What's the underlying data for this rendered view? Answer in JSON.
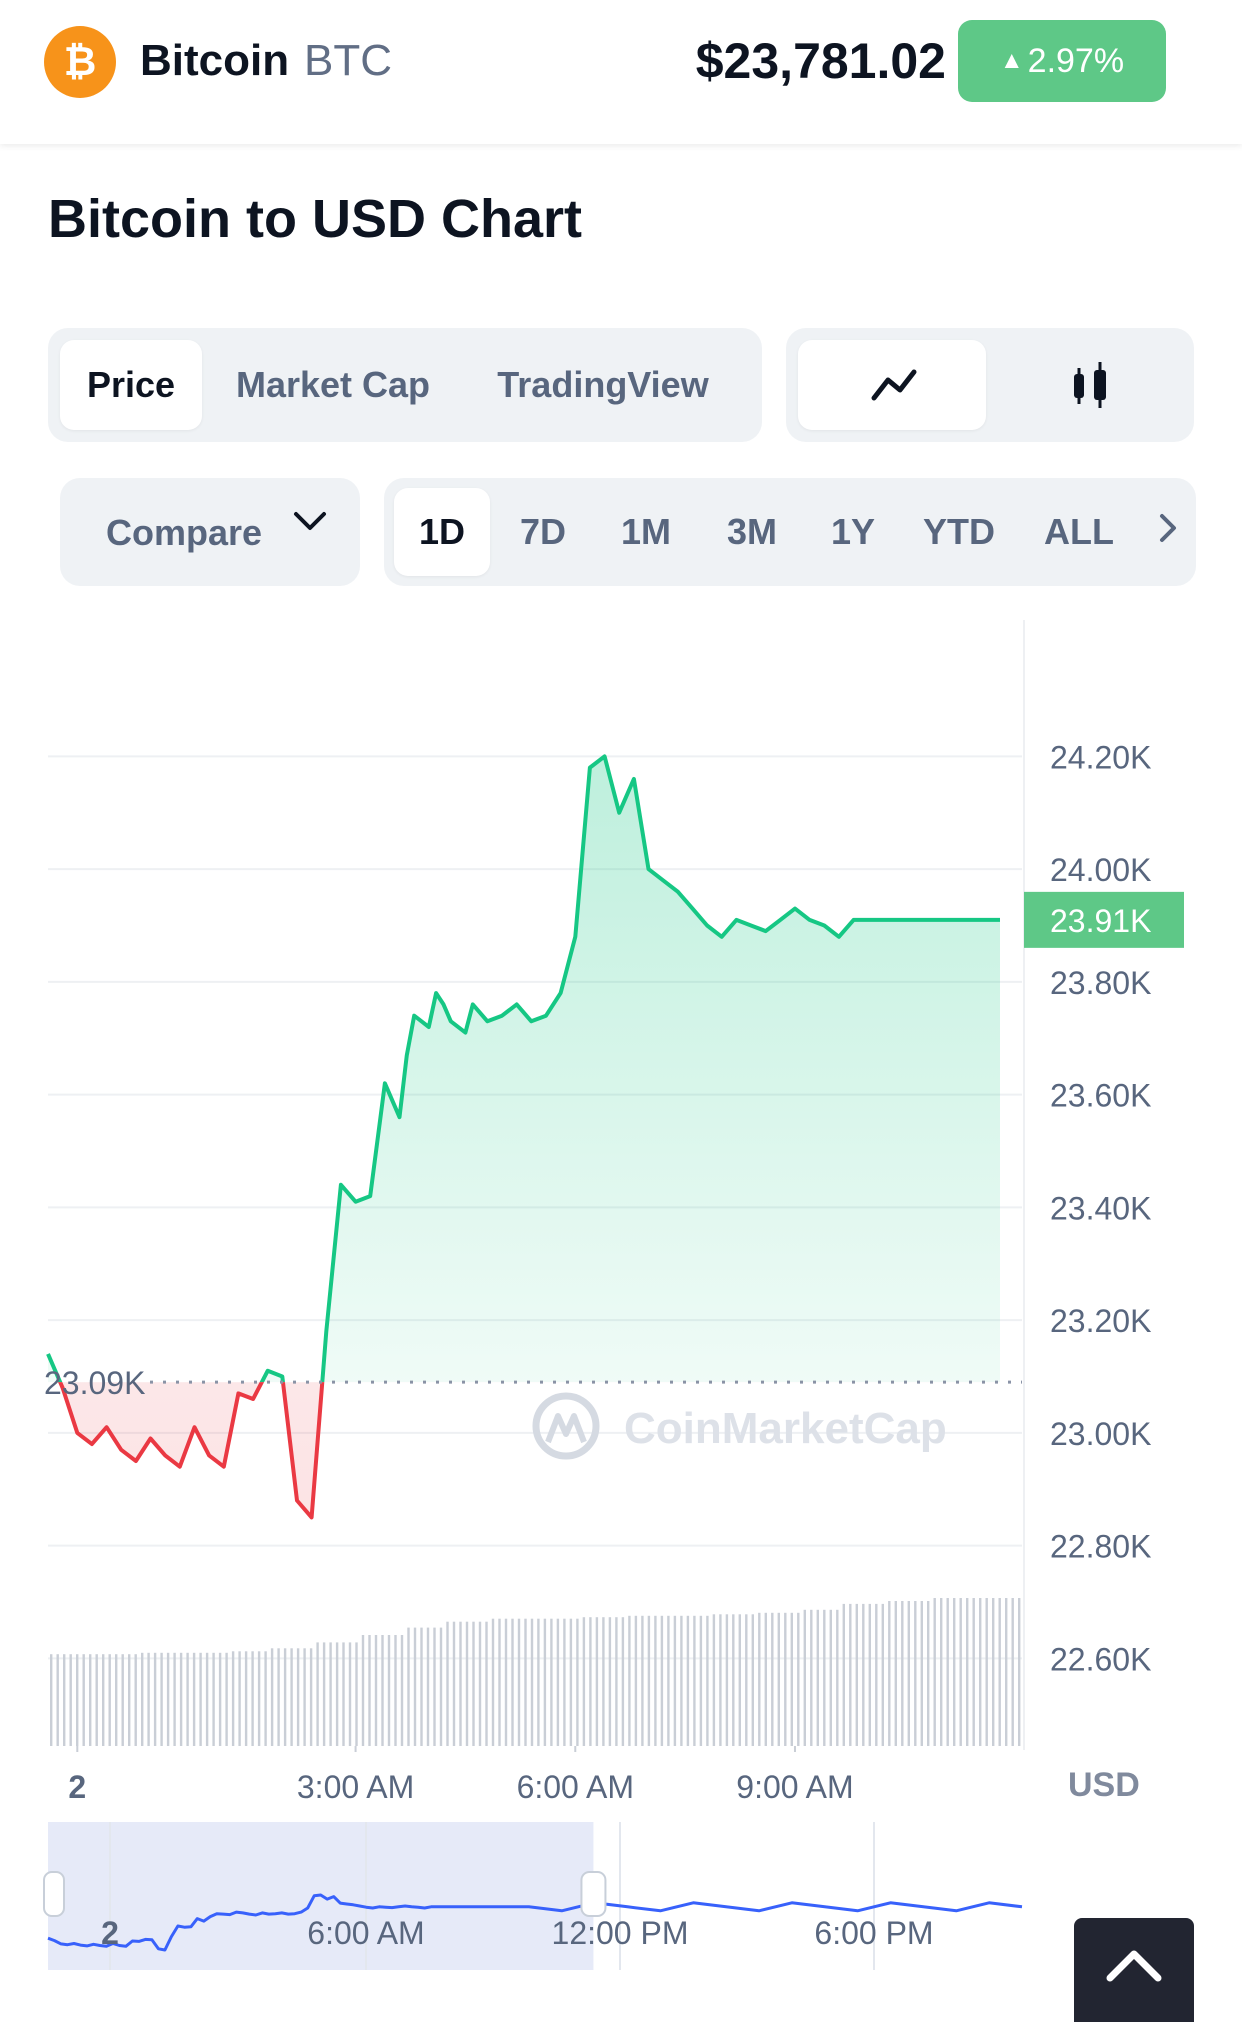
{
  "header": {
    "coin_name": "Bitcoin",
    "coin_symbol": "BTC",
    "logo_glyph": "₿",
    "price": "$23,781.02",
    "change": "2.97%",
    "change_color": "#5ec887"
  },
  "title": "Bitcoin to USD Chart",
  "mode_tabs": [
    "Price",
    "Market Cap",
    "TradingView"
  ],
  "mode_active": "Price",
  "chart_type_icons": [
    "line-chart-icon",
    "candlestick-icon"
  ],
  "compare_label": "Compare",
  "range_tabs": [
    "1D",
    "7D",
    "1M",
    "3M",
    "1Y",
    "YTD",
    "ALL"
  ],
  "range_active": "1D",
  "currency_label": "USD",
  "watermark": "CoinMarketCap",
  "chart_data": {
    "type": "area",
    "ylim": [
      22480,
      24300
    ],
    "yticks": [
      "24.20K",
      "24.00K",
      "23.80K",
      "23.60K",
      "23.40K",
      "23.20K",
      "23.00K",
      "22.80K",
      "22.60K"
    ],
    "ytick_values": [
      24200,
      24000,
      23800,
      23600,
      23400,
      23200,
      23000,
      22800,
      22600
    ],
    "xticks": [
      "2",
      "3:00 AM",
      "6:00 AM",
      "9:00 AM"
    ],
    "xtick_hours": [
      -0.8,
      3,
      6,
      9
    ],
    "reference_value": 23090,
    "reference_label": "23.09K",
    "current_value": 23910,
    "current_label": "23.91K",
    "up_color": "#16c784",
    "down_color": "#ea3943",
    "hours": [
      -1.2,
      -1.0,
      -0.8,
      -0.6,
      -0.4,
      -0.2,
      0.0,
      0.2,
      0.4,
      0.6,
      0.8,
      1.0,
      1.2,
      1.4,
      1.6,
      1.8,
      2.0,
      2.2,
      2.4,
      2.6,
      2.8,
      3.0,
      3.2,
      3.4,
      3.6,
      3.7,
      3.8,
      3.9,
      4.0,
      4.1,
      4.2,
      4.3,
      4.5,
      4.6,
      4.8,
      5.0,
      5.2,
      5.4,
      5.6,
      5.8,
      6.0,
      6.2,
      6.4,
      6.6,
      6.8,
      7.0,
      7.2,
      7.4,
      7.6,
      7.8,
      8.0,
      8.2,
      8.4,
      8.6,
      8.8,
      9.0,
      9.2,
      9.4,
      9.6,
      9.8,
      10.0,
      10.2,
      10.4,
      10.6,
      10.8,
      11.0,
      11.2,
      11.4,
      11.6,
      11.8
    ],
    "prices": [
      23140,
      23080,
      23000,
      22980,
      23010,
      22970,
      22950,
      22990,
      22960,
      22940,
      23010,
      22960,
      22940,
      23070,
      23060,
      23110,
      23100,
      22880,
      22850,
      23180,
      23440,
      23410,
      23420,
      23620,
      23560,
      23670,
      23740,
      23730,
      23720,
      23780,
      23760,
      23730,
      23710,
      23760,
      23730,
      23740,
      23760,
      23730,
      23740,
      23780,
      23880,
      24180,
      24200,
      24100,
      24160,
      24000,
      23980,
      23960,
      23930,
      23900,
      23880,
      23910,
      23900,
      23890,
      23910,
      23930,
      23910,
      23900,
      23880,
      23910,
      23910,
      23910,
      23910,
      23910,
      23910,
      23910,
      23910,
      23910,
      23910,
      23910
    ],
    "volume_levels": [
      0.62,
      0.62,
      0.63,
      0.63,
      0.64,
      0.66,
      0.7,
      0.75,
      0.8,
      0.84,
      0.86,
      0.86,
      0.87,
      0.88,
      0.88,
      0.89,
      0.9,
      0.92,
      0.96,
      0.98,
      1.0,
      1.0
    ],
    "overview": {
      "xticks": [
        "2",
        "6:00 AM",
        "12:00 PM",
        "6:00 PM"
      ],
      "selection_fraction": [
        0.0,
        0.56
      ],
      "line_color": "#3861fb"
    }
  }
}
